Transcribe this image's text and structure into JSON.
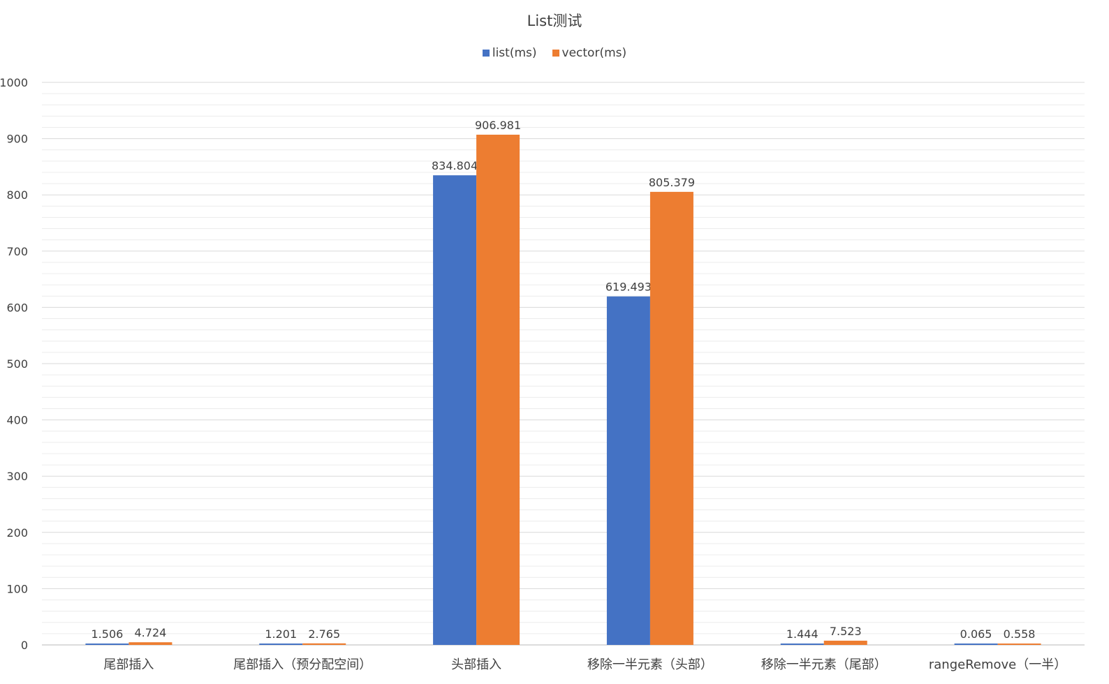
{
  "chart_data": {
    "type": "bar",
    "title": "List测试",
    "categories": [
      "尾部插入",
      "尾部插入（预分配空间）",
      "头部插入",
      "移除一半元素（头部）",
      "移除一半元素（尾部）",
      "rangeRemove（一半）"
    ],
    "series": [
      {
        "name": "list(ms)",
        "color": "#4472c4",
        "values": [
          1.506,
          1.201,
          834.804,
          619.493,
          1.444,
          0.065
        ]
      },
      {
        "name": "vector(ms)",
        "color": "#ed7d31",
        "values": [
          4.724,
          2.765,
          906.981,
          805.379,
          7.523,
          0.558
        ]
      }
    ],
    "data_labels": [
      [
        "1.506",
        "1.201",
        "834.804",
        "619.493",
        "1.444",
        "0.065"
      ],
      [
        "4.724",
        "2.765",
        "906.981",
        "805.379",
        "7.523",
        "0.558"
      ]
    ],
    "y_ticks": [
      "0",
      "100",
      "200",
      "300",
      "400",
      "500",
      "600",
      "700",
      "800",
      "900",
      "1000"
    ],
    "ylim": [
      0,
      1000
    ],
    "xlabel": "",
    "ylabel": "",
    "grid": true,
    "minor_grid": true,
    "legend_position": "top"
  }
}
